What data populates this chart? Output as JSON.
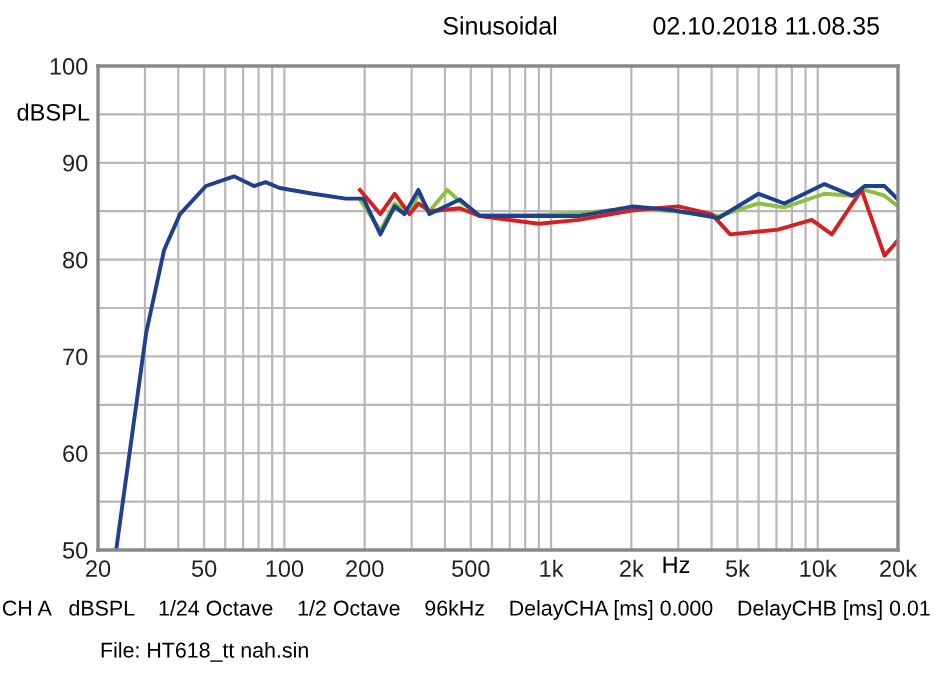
{
  "chart_data": {
    "type": "line",
    "title": "Sinusoidal",
    "subtitle": "02.10.2018 11.08.35",
    "xlabel": "Hz",
    "ylabel": "dBSPL",
    "annotations": [
      "CH A   dBSPL    1/24 Octave    1/2 Octave    96kHz    DelayCHA [ms] 0.000    DelayCHB [ms] 0.01",
      "File: HT618_tt nah.sin"
    ],
    "log": "x",
    "xlim": [
      20,
      20000
    ],
    "ylim": [
      50,
      100
    ],
    "xticks": [
      20,
      {
        "value": 30,
        "label": null
      },
      {
        "value": 40,
        "label": null
      },
      50,
      {
        "value": 60,
        "label": null
      },
      {
        "value": 70,
        "label": null
      },
      {
        "value": 80,
        "label": null
      },
      {
        "value": 90,
        "label": null
      },
      100,
      200,
      {
        "value": 300,
        "label": null
      },
      {
        "value": 400,
        "label": null
      },
      500,
      {
        "value": 600,
        "label": null
      },
      {
        "value": 700,
        "label": null
      },
      {
        "value": 800,
        "label": null
      },
      {
        "value": 900,
        "label": null
      },
      {
        "value": 1000,
        "label": "1k"
      },
      {
        "value": 2000,
        "label": "2k"
      },
      {
        "value": 3000,
        "label": null
      },
      {
        "value": 4000,
        "label": null
      },
      {
        "value": 5000,
        "label": "5k"
      },
      {
        "value": 6000,
        "label": null
      },
      {
        "value": 7000,
        "label": null
      },
      {
        "value": 8000,
        "label": null
      },
      {
        "value": 9000,
        "label": null
      },
      {
        "value": 10000,
        "label": "10k"
      },
      {
        "value": 20000,
        "label": "20k"
      }
    ],
    "yticks": [
      50,
      {
        "value": 55,
        "label": null
      },
      60,
      {
        "value": 65,
        "label": null
      },
      70,
      {
        "value": 75,
        "label": null
      },
      80,
      {
        "value": 85,
        "label": null
      },
      90,
      {
        "value": 95,
        "label": null
      },
      100
    ],
    "grid": true,
    "legend": false,
    "marker": "none",
    "line_style": "solid",
    "series": [
      {
        "color": "#8cbf3f",
        "x": [
          192,
          229,
          259,
          295,
          318,
          350,
          408,
          455,
          540,
          857,
          1270,
          2030,
          2870,
          4250,
          6000,
          7500,
          10600,
          13500,
          15000,
          17800,
          20000
        ],
        "values": [
          86.2,
          83.0,
          85.8,
          84.7,
          86.8,
          85.0,
          87.2,
          86.0,
          84.6,
          84.6,
          84.8,
          85.3,
          85.0,
          84.5,
          85.8,
          85.4,
          86.8,
          86.6,
          87.2,
          86.6,
          85.5
        ]
      },
      {
        "color": "#d42020",
        "x": [
          192,
          229,
          259,
          295,
          318,
          350,
          455,
          540,
          900,
          1270,
          2030,
          3000,
          4000,
          4700,
          7100,
          9500,
          11300,
          14600,
          17800,
          20000
        ],
        "values": [
          87.2,
          84.7,
          86.8,
          84.7,
          85.8,
          85.0,
          85.3,
          84.5,
          83.7,
          84.1,
          85.1,
          85.5,
          84.7,
          82.6,
          83.1,
          84.1,
          82.6,
          87.2,
          80.4,
          82.0
        ]
      },
      {
        "color": "#1f3f8f",
        "x": [
          23.4,
          30.3,
          35.4,
          40.6,
          50.8,
          64.7,
          76.9,
          85,
          96,
          128,
          170,
          198,
          229,
          259,
          282,
          318,
          350,
          455,
          540,
          857,
          1270,
          2030,
          2870,
          4250,
          6000,
          7500,
          10600,
          13500,
          15000,
          17800,
          20000
        ],
        "values": [
          50,
          72.4,
          81,
          84.7,
          87.6,
          88.6,
          87.6,
          88,
          87.4,
          86.8,
          86.3,
          86.3,
          82.6,
          85.5,
          84.7,
          87.2,
          84.7,
          86.2,
          84.5,
          84.5,
          84.5,
          85.5,
          85.1,
          84.3,
          86.8,
          85.8,
          87.8,
          86.6,
          87.6,
          87.6,
          86.2
        ]
      }
    ]
  }
}
